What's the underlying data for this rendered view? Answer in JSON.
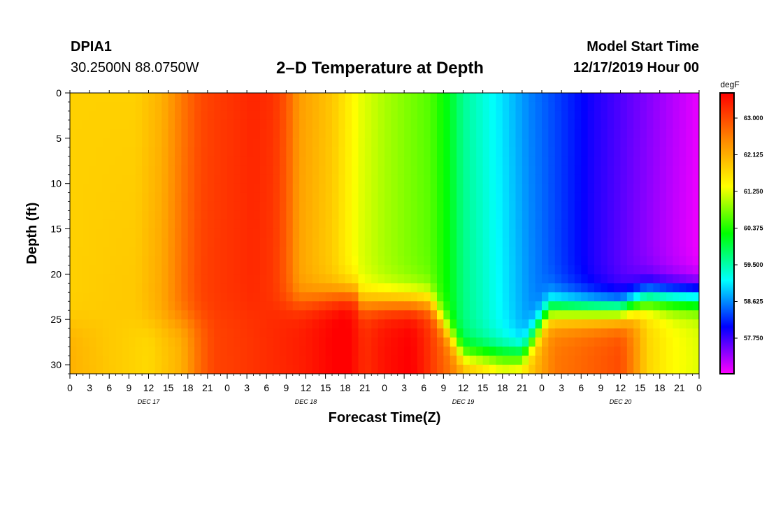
{
  "header": {
    "station_id": "DPIA1",
    "coords": "30.2500N 88.0750W",
    "start_label": "Model Start Time",
    "start_value": "12/17/2019 Hour 00"
  },
  "chart_data": {
    "type": "heatmap",
    "title": "2–D Temperature at Depth",
    "xlabel": "Forecast Time(Z)",
    "ylabel": "Depth (ft)",
    "x_hours_range": [
      0,
      96
    ],
    "x_tick_step_hours": 3,
    "x_tick_labels": [
      "0",
      "3",
      "6",
      "9",
      "12",
      "15",
      "18",
      "21",
      "0",
      "3",
      "6",
      "9",
      "12",
      "15",
      "18",
      "21",
      "0",
      "3",
      "6",
      "9",
      "12",
      "15",
      "18",
      "21",
      "0",
      "3",
      "6",
      "9",
      "12",
      "15",
      "18",
      "21",
      "0"
    ],
    "day_labels": [
      {
        "label": "DEC 17",
        "hour": 12
      },
      {
        "label": "DEC 18",
        "hour": 36
      },
      {
        "label": "DEC 19",
        "hour": 60
      },
      {
        "label": "DEC 20",
        "hour": 84
      }
    ],
    "y_range": [
      0,
      31
    ],
    "y_reversed": true,
    "y_ticks": [
      0,
      5,
      10,
      15,
      20,
      25,
      30
    ],
    "colorbar": {
      "unit": "degF",
      "min": 56.9,
      "max": 63.6,
      "tick_values": [
        63.0,
        62.125,
        61.25,
        60.375,
        59.5,
        58.625,
        57.75
      ],
      "tick_labels": [
        "63.000",
        "62.125",
        "61.250",
        "60.375",
        "59.500",
        "58.625",
        "57.750"
      ],
      "colors": [
        "#ff00ff",
        "#0000ff",
        "#00ffff",
        "#00ff00",
        "#ffff00",
        "#ff8800",
        "#ff0000"
      ]
    },
    "grid": false,
    "legend": "colorbar-right",
    "surface_layer_temperature_degF": {
      "hours": [
        0,
        10,
        14,
        17,
        20,
        22,
        28,
        31,
        33,
        35,
        40,
        44,
        48,
        55,
        58,
        60,
        66,
        70,
        80,
        96
      ],
      "values": [
        61.8,
        61.8,
        62.1,
        62.6,
        63.0,
        63.1,
        63.3,
        63.2,
        62.9,
        62.3,
        61.9,
        61.3,
        61.0,
        60.6,
        60.1,
        59.6,
        59.0,
        58.6,
        57.9,
        57.0
      ]
    },
    "bottom_layer_temperature_degF": {
      "hours": [
        0,
        6,
        12,
        17,
        20,
        22,
        30,
        36,
        42,
        45,
        48,
        52,
        54,
        56,
        60,
        66,
        70,
        74,
        80,
        84,
        86,
        88,
        92,
        96
      ],
      "values": [
        62.1,
        61.8,
        61.6,
        62.0,
        62.7,
        63.0,
        63.3,
        63.5,
        63.8,
        63.3,
        63.5,
        63.6,
        63.3,
        62.9,
        62.2,
        61.5,
        61.8,
        62.6,
        62.9,
        63.1,
        62.6,
        61.9,
        61.5,
        61.3
      ]
    }
  }
}
